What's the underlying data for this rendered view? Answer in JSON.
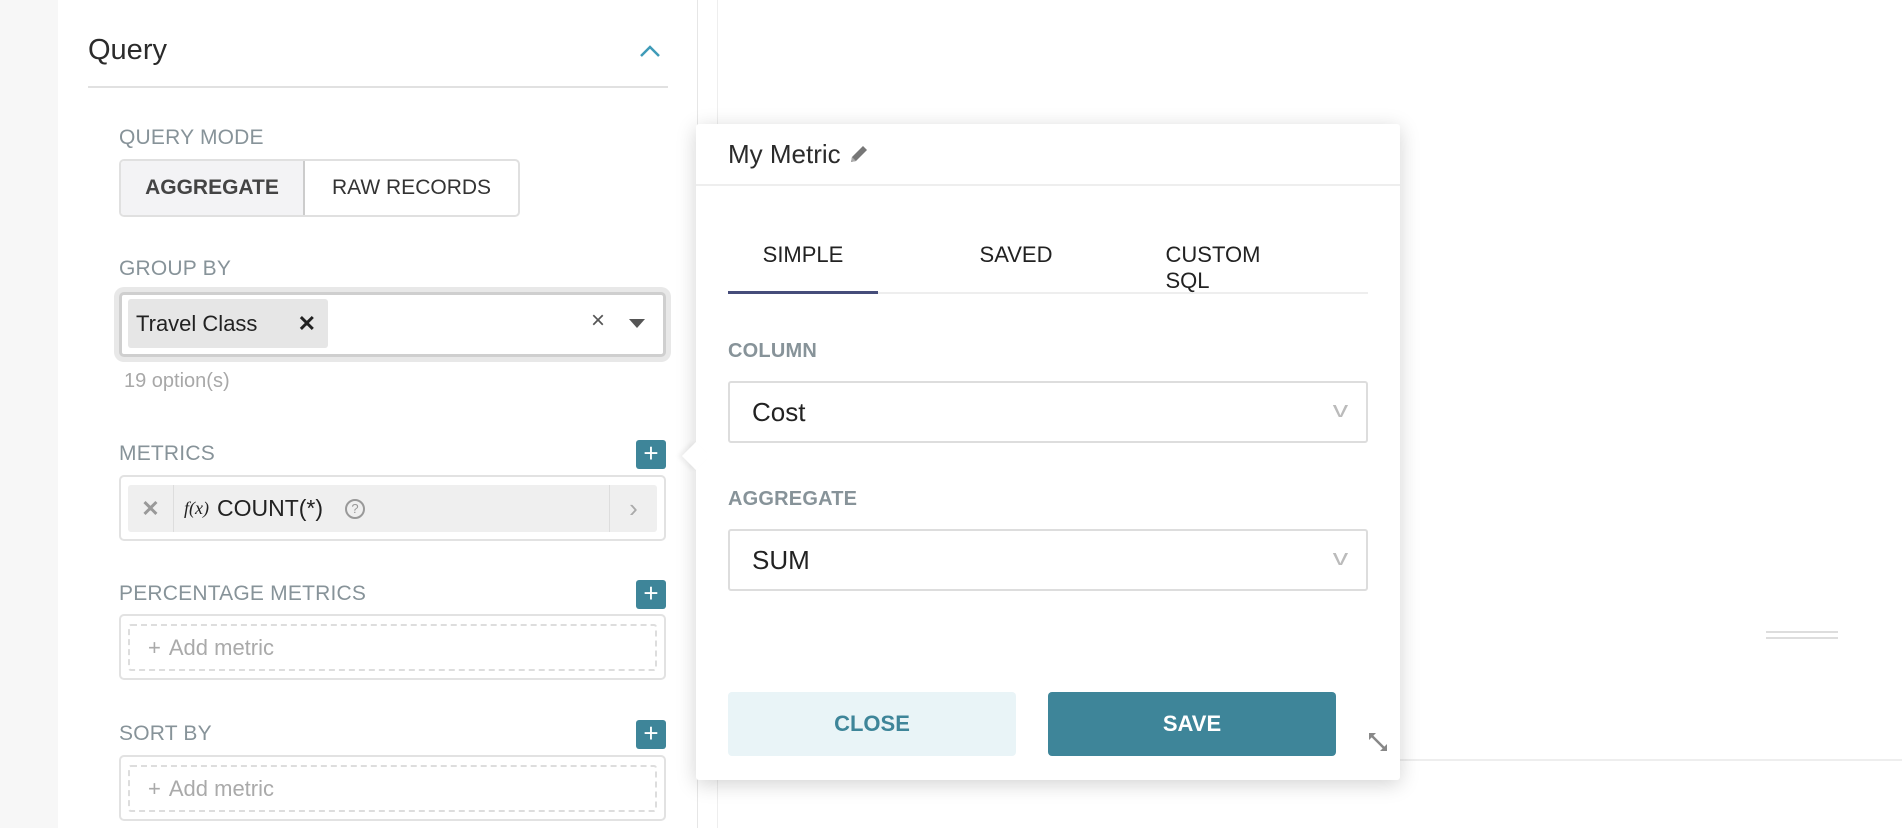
{
  "query_panel": {
    "title": "Query",
    "query_mode": {
      "label": "QUERY MODE",
      "options": [
        "AGGREGATE",
        "RAW RECORDS"
      ],
      "selected": "AGGREGATE"
    },
    "group_by": {
      "label": "GROUP BY",
      "chips": [
        "Travel Class"
      ],
      "clear_icon": "×",
      "options_count": "19 option(s)"
    },
    "metrics": {
      "label": "METRICS",
      "items": [
        {
          "fx": "f(x)",
          "name": "COUNT(*)"
        }
      ]
    },
    "percentage_metrics": {
      "label": "PERCENTAGE METRICS",
      "placeholder": "Add metric"
    },
    "sort_by": {
      "label": "SORT BY",
      "placeholder": "Add metric"
    }
  },
  "metric_popover": {
    "title": "My Metric",
    "tabs": [
      "SIMPLE",
      "SAVED",
      "CUSTOM SQL"
    ],
    "active_tab": "SIMPLE",
    "column": {
      "label": "COLUMN",
      "value": "Cost"
    },
    "aggregate": {
      "label": "AGGREGATE",
      "value": "SUM"
    },
    "close_label": "CLOSE",
    "save_label": "SAVE"
  },
  "colors": {
    "accent": "#3e8599",
    "tab_active": "#464d7a",
    "close_bg": "#e9f4f7"
  }
}
